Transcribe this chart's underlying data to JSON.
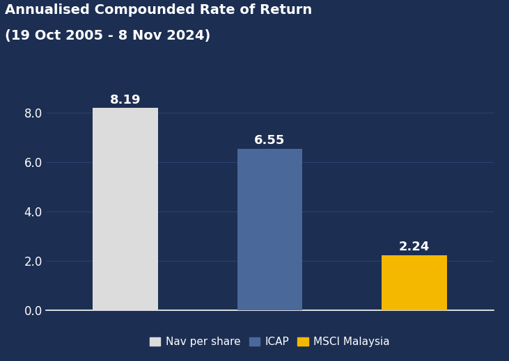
{
  "title_line1": "Annualised Compounded Rate of Return",
  "title_line2": "(19 Oct 2005 - 8 Nov 2024)",
  "categories": [
    "Nav per share",
    "ICAP",
    "MSCI Malaysia"
  ],
  "values": [
    8.19,
    6.55,
    2.24
  ],
  "bar_colors": [
    "#dcdcdc",
    "#4a6899",
    "#f5b800"
  ],
  "bar_labels": [
    "8.19",
    "6.55",
    "2.24"
  ],
  "background_color": "#1c2e52",
  "text_color": "#ffffff",
  "grid_color": "#2e4070",
  "ylim": [
    0,
    9.2
  ],
  "yticks": [
    0.0,
    2.0,
    4.0,
    6.0,
    8.0
  ],
  "label_fontsize": 12,
  "title_fontsize": 14,
  "legend_fontsize": 11,
  "bar_label_fontsize": 13,
  "bar_width": 0.45
}
